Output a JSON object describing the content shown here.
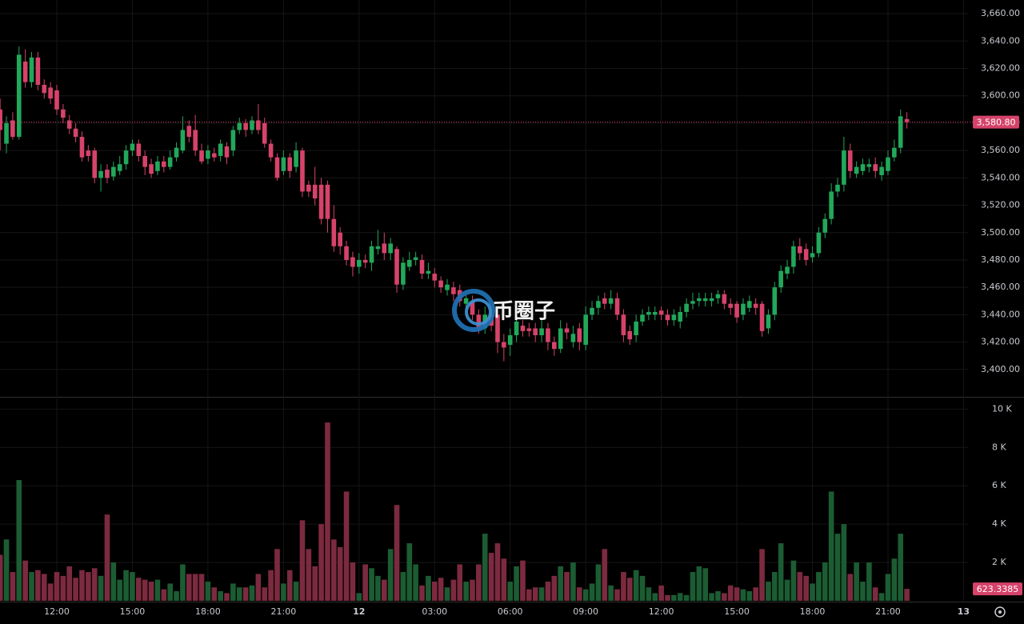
{
  "chart_data": {
    "type": "candlestick",
    "watermark": "币圈子",
    "up_color": "#22a85a",
    "down_color": "#d6436a",
    "up_volume_color": "#1c5c33",
    "down_volume_color": "#7c2a3f",
    "grid": true,
    "categories": [
      null,
      null,
      null,
      null,
      null,
      null,
      null,
      null,
      null,
      "12:00",
      null,
      null,
      null,
      null,
      null,
      null,
      null,
      null,
      null,
      null,
      null,
      "15:00",
      null,
      null,
      null,
      null,
      null,
      null,
      null,
      null,
      null,
      null,
      null,
      "18:00",
      null,
      null,
      null,
      null,
      null,
      null,
      null,
      null,
      null,
      null,
      null,
      "21:00",
      null,
      null,
      null,
      null,
      null,
      null,
      null,
      null,
      null,
      null,
      null,
      "12",
      null,
      null,
      null,
      null,
      null,
      null,
      null,
      null,
      null,
      null,
      null,
      "03:00",
      null,
      null,
      null,
      null,
      null,
      null,
      null,
      null,
      null,
      null,
      null,
      "06:00",
      null,
      null,
      null,
      null,
      null,
      null,
      null,
      null,
      null,
      null,
      null,
      "09:00",
      null,
      null,
      null,
      null,
      null,
      null,
      null,
      null,
      null,
      null,
      null,
      "12:00",
      null,
      null,
      null,
      null,
      null,
      null,
      null,
      null,
      null,
      null,
      null,
      "15:00",
      null,
      null,
      null,
      null,
      null,
      null,
      null,
      null,
      null,
      null,
      null,
      "18:00",
      null,
      null,
      null,
      null,
      null,
      null,
      null,
      null,
      null,
      null,
      null,
      "21:00",
      null,
      null,
      null,
      null,
      null,
      null,
      null,
      null,
      null,
      null,
      null,
      "13"
    ],
    "candles": [
      [
        3590,
        3598,
        3560,
        3575
      ],
      [
        3565,
        3585,
        3558,
        3580
      ],
      [
        3582,
        3588,
        3568,
        3570
      ],
      [
        3570,
        3636,
        3568,
        3630
      ],
      [
        3625,
        3634,
        3606,
        3610
      ],
      [
        3610,
        3632,
        3606,
        3628
      ],
      [
        3628,
        3632,
        3604,
        3608
      ],
      [
        3608,
        3612,
        3598,
        3602
      ],
      [
        3606,
        3610,
        3594,
        3598
      ],
      [
        3604,
        3608,
        3586,
        3590
      ],
      [
        3590,
        3594,
        3580,
        3584
      ],
      [
        3582,
        3586,
        3572,
        3576
      ],
      [
        3576,
        3580,
        3566,
        3570
      ],
      [
        3570,
        3574,
        3552,
        3555
      ],
      [
        3560,
        3564,
        3552,
        3556
      ],
      [
        3560,
        3562,
        3536,
        3540
      ],
      [
        3540,
        3550,
        3530,
        3545
      ],
      [
        3546,
        3550,
        3536,
        3540
      ],
      [
        3541,
        3552,
        3538,
        3548
      ],
      [
        3545,
        3556,
        3542,
        3550
      ],
      [
        3550,
        3564,
        3546,
        3560
      ],
      [
        3560,
        3568,
        3556,
        3565
      ],
      [
        3565,
        3568,
        3552,
        3556
      ],
      [
        3556,
        3560,
        3542,
        3548
      ],
      [
        3550,
        3554,
        3540,
        3543
      ],
      [
        3545,
        3556,
        3542,
        3552
      ],
      [
        3552,
        3556,
        3544,
        3548
      ],
      [
        3548,
        3560,
        3546,
        3555
      ],
      [
        3555,
        3566,
        3552,
        3562
      ],
      [
        3560,
        3585,
        3558,
        3575
      ],
      [
        3578,
        3582,
        3566,
        3570
      ],
      [
        3575,
        3586,
        3556,
        3560
      ],
      [
        3560,
        3565,
        3550,
        3552
      ],
      [
        3554,
        3564,
        3550,
        3560
      ],
      [
        3558,
        3562,
        3552,
        3555
      ],
      [
        3556,
        3568,
        3552,
        3565
      ],
      [
        3563,
        3566,
        3550,
        3555
      ],
      [
        3560,
        3578,
        3556,
        3575
      ],
      [
        3575,
        3584,
        3572,
        3580
      ],
      [
        3580,
        3583,
        3570,
        3575
      ],
      [
        3575,
        3585,
        3572,
        3582
      ],
      [
        3582,
        3594,
        3572,
        3575
      ],
      [
        3580,
        3584,
        3562,
        3565
      ],
      [
        3565,
        3568,
        3552,
        3555
      ],
      [
        3555,
        3558,
        3538,
        3540
      ],
      [
        3545,
        3560,
        3542,
        3555
      ],
      [
        3555,
        3558,
        3540,
        3545
      ],
      [
        3548,
        3566,
        3544,
        3560
      ],
      [
        3560,
        3562,
        3526,
        3530
      ],
      [
        3535,
        3538,
        3526,
        3530
      ],
      [
        3535,
        3548,
        3520,
        3525
      ],
      [
        3535,
        3540,
        3506,
        3510
      ],
      [
        3535,
        3538,
        3500,
        3510
      ],
      [
        3510,
        3520,
        3486,
        3490
      ],
      [
        3500,
        3504,
        3484,
        3490
      ],
      [
        3490,
        3494,
        3476,
        3480
      ],
      [
        3482,
        3486,
        3468,
        3475
      ],
      [
        3475,
        3485,
        3470,
        3480
      ],
      [
        3480,
        3484,
        3474,
        3478
      ],
      [
        3478,
        3494,
        3472,
        3490
      ],
      [
        3488,
        3502,
        3484,
        3490
      ],
      [
        3492,
        3500,
        3480,
        3485
      ],
      [
        3485,
        3496,
        3480,
        3492
      ],
      [
        3488,
        3490,
        3456,
        3462
      ],
      [
        3462,
        3482,
        3458,
        3478
      ],
      [
        3475,
        3486,
        3472,
        3480
      ],
      [
        3480,
        3486,
        3476,
        3482
      ],
      [
        3480,
        3484,
        3466,
        3470
      ],
      [
        3470,
        3478,
        3466,
        3472
      ],
      [
        3470,
        3474,
        3460,
        3465
      ],
      [
        3465,
        3468,
        3456,
        3460
      ],
      [
        3458,
        3466,
        3454,
        3462
      ],
      [
        3460,
        3464,
        3450,
        3455
      ],
      [
        3458,
        3462,
        3446,
        3450
      ],
      [
        3448,
        3458,
        3444,
        3452
      ],
      [
        3450,
        3454,
        3436,
        3440
      ],
      [
        3440,
        3444,
        3426,
        3430
      ],
      [
        3430,
        3446,
        3426,
        3440
      ],
      [
        3440,
        3444,
        3428,
        3432
      ],
      [
        3440,
        3444,
        3412,
        3420
      ],
      [
        3420,
        3426,
        3406,
        3416
      ],
      [
        3418,
        3430,
        3410,
        3425
      ],
      [
        3425,
        3440,
        3420,
        3435
      ],
      [
        3432,
        3436,
        3424,
        3428
      ],
      [
        3430,
        3434,
        3424,
        3428
      ],
      [
        3430,
        3434,
        3420,
        3425
      ],
      [
        3425,
        3436,
        3420,
        3430
      ],
      [
        3430,
        3434,
        3414,
        3420
      ],
      [
        3420,
        3424,
        3410,
        3415
      ],
      [
        3415,
        3436,
        3412,
        3430
      ],
      [
        3430,
        3434,
        3422,
        3427
      ],
      [
        3420,
        3432,
        3416,
        3426
      ],
      [
        3430,
        3434,
        3414,
        3420
      ],
      [
        3418,
        3446,
        3414,
        3440
      ],
      [
        3440,
        3450,
        3436,
        3445
      ],
      [
        3445,
        3454,
        3440,
        3450
      ],
      [
        3452,
        3456,
        3444,
        3448
      ],
      [
        3448,
        3458,
        3444,
        3452
      ],
      [
        3452,
        3456,
        3436,
        3440
      ],
      [
        3440,
        3444,
        3420,
        3425
      ],
      [
        3428,
        3432,
        3418,
        3422
      ],
      [
        3425,
        3440,
        3420,
        3435
      ],
      [
        3435,
        3444,
        3432,
        3440
      ],
      [
        3440,
        3446,
        3436,
        3442
      ],
      [
        3440,
        3446,
        3436,
        3442
      ],
      [
        3443,
        3446,
        3436,
        3440
      ],
      [
        3440,
        3444,
        3432,
        3436
      ],
      [
        3436,
        3444,
        3432,
        3440
      ],
      [
        3435,
        3446,
        3430,
        3442
      ],
      [
        3442,
        3452,
        3438,
        3448
      ],
      [
        3448,
        3456,
        3444,
        3450
      ],
      [
        3450,
        3456,
        3446,
        3452
      ],
      [
        3450,
        3456,
        3446,
        3452
      ],
      [
        3450,
        3456,
        3446,
        3452
      ],
      [
        3452,
        3458,
        3448,
        3455
      ],
      [
        3455,
        3458,
        3444,
        3448
      ],
      [
        3448,
        3452,
        3440,
        3445
      ],
      [
        3448,
        3450,
        3434,
        3438
      ],
      [
        3440,
        3452,
        3436,
        3448
      ],
      [
        3445,
        3454,
        3442,
        3450
      ],
      [
        3448,
        3452,
        3440,
        3445
      ],
      [
        3448,
        3450,
        3424,
        3428
      ],
      [
        3430,
        3444,
        3426,
        3440
      ],
      [
        3440,
        3464,
        3436,
        3460
      ],
      [
        3460,
        3476,
        3456,
        3472
      ],
      [
        3470,
        3480,
        3466,
        3475
      ],
      [
        3475,
        3494,
        3470,
        3490
      ],
      [
        3490,
        3496,
        3480,
        3485
      ],
      [
        3488,
        3492,
        3476,
        3480
      ],
      [
        3482,
        3490,
        3478,
        3485
      ],
      [
        3485,
        3504,
        3482,
        3500
      ],
      [
        3500,
        3514,
        3496,
        3510
      ],
      [
        3510,
        3536,
        3506,
        3530
      ],
      [
        3530,
        3540,
        3526,
        3535
      ],
      [
        3535,
        3570,
        3530,
        3560
      ],
      [
        3560,
        3565,
        3540,
        3545
      ],
      [
        3543,
        3552,
        3540,
        3548
      ],
      [
        3545,
        3554,
        3542,
        3550
      ],
      [
        3548,
        3554,
        3544,
        3550
      ],
      [
        3550,
        3555,
        3540,
        3545
      ],
      [
        3542,
        3552,
        3538,
        3548
      ],
      [
        3545,
        3560,
        3542,
        3555
      ],
      [
        3555,
        3568,
        3552,
        3562
      ],
      [
        3562,
        3590,
        3558,
        3585
      ],
      [
        3583,
        3588,
        3576,
        3580.8
      ],
      null,
      null,
      null,
      null,
      null,
      null,
      null,
      null,
      null
    ],
    "volume": [
      2400,
      3200,
      1500,
      6300,
      2100,
      1500,
      1600,
      1400,
      900,
      1500,
      1300,
      1800,
      1200,
      1600,
      1500,
      1700,
      1300,
      4500,
      2000,
      1100,
      1600,
      1500,
      1200,
      1100,
      1000,
      1100,
      600,
      900,
      500,
      1900,
      1400,
      1400,
      1400,
      1000,
      700,
      500,
      400,
      900,
      700,
      700,
      800,
      1400,
      700,
      1600,
      2700,
      900,
      1600,
      1000,
      4200,
      2700,
      1800,
      4000,
      9300,
      3200,
      2800,
      5700,
      2000,
      400,
      1900,
      1700,
      1300,
      1100,
      2700,
      5000,
      1500,
      3000,
      1900,
      800,
      1300,
      1000,
      1200,
      700,
      1100,
      1900,
      1000,
      1100,
      1900,
      3500,
      2500,
      3000,
      2200,
      1000,
      1800,
      2100,
      600,
      700,
      700,
      1000,
      1300,
      1800,
      1500,
      2000,
      700,
      600,
      900,
      1900,
      2700,
      800,
      600,
      1500,
      1200,
      1600,
      1300,
      700,
      400,
      800,
      300,
      300,
      400,
      300,
      1500,
      1800,
      1700,
      400,
      500,
      400,
      800,
      700,
      600,
      500,
      700,
      2700,
      1000,
      1500,
      3000,
      1100,
      2100,
      1500,
      1300,
      900,
      1500,
      2000,
      5700,
      3500,
      4000,
      1400,
      2000,
      1000,
      2000,
      700,
      400,
      1400,
      2200,
      3500,
      623.3385,
      null,
      null,
      null,
      null,
      null,
      null,
      null,
      null,
      null
    ],
    "last_close_label": "3,580.80",
    "ylim": [
      3380,
      3670
    ],
    "yticks": [
      {
        "value": 3400,
        "label": "3,400.00"
      },
      {
        "value": 3420,
        "label": "3,420.00"
      },
      {
        "value": 3440,
        "label": "3,440.00"
      },
      {
        "value": 3460,
        "label": "3,460.00"
      },
      {
        "value": 3480,
        "label": "3,480.00"
      },
      {
        "value": 3500,
        "label": "3,500.00"
      },
      {
        "value": 3520,
        "label": "3,520.00"
      },
      {
        "value": 3540,
        "label": "3,540.00"
      },
      {
        "value": 3560,
        "label": "3,560.00"
      },
      {
        "value": 3580,
        "label": "3,580.00"
      },
      {
        "value": 3600,
        "label": "3,600.00"
      },
      {
        "value": 3620,
        "label": "3,620.00"
      },
      {
        "value": 3640,
        "label": "3,640.00"
      },
      {
        "value": 3660,
        "label": "3,660.00"
      }
    ],
    "y2lim": [
      0,
      10600
    ],
    "y2ticks": [
      {
        "value": 2000,
        "label": "2 K"
      },
      {
        "value": 4000,
        "label": "4 K"
      },
      {
        "value": 6000,
        "label": "6 K"
      },
      {
        "value": 8000,
        "label": "8 K"
      },
      {
        "value": 10000,
        "label": "10 K"
      }
    ]
  }
}
